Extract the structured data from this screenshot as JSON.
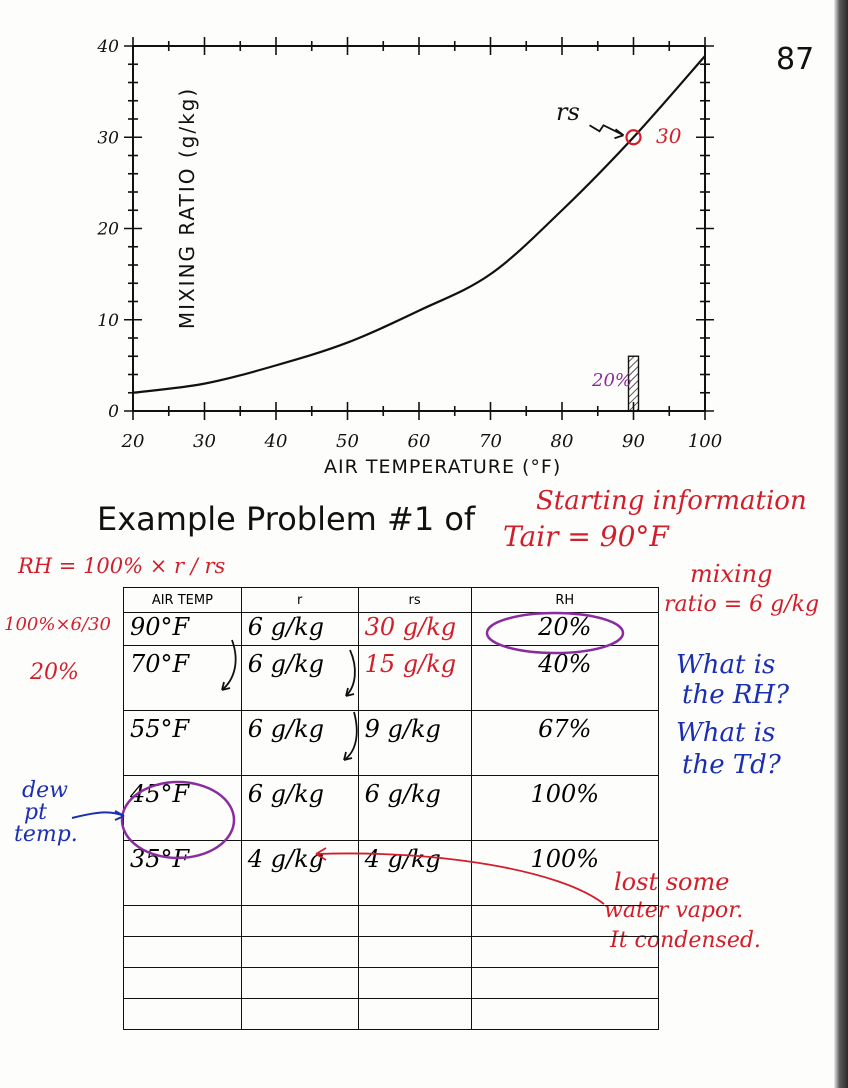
{
  "page_number": "87",
  "chart_data": {
    "type": "line",
    "xlabel": "AIR TEMPERATURE (°F)",
    "ylabel": "MIXING RATIO (g/kg)",
    "xlim": [
      20,
      100
    ],
    "ylim": [
      0,
      40
    ],
    "x_ticks": [
      "20",
      "30",
      "40",
      "50",
      "60",
      "70",
      "80",
      "90",
      "100"
    ],
    "y_ticks": [
      "0",
      "10",
      "20",
      "30",
      "40"
    ],
    "series": [
      {
        "x": [
          20,
          30,
          40,
          50,
          60,
          70,
          80,
          90,
          100
        ],
        "y": [
          2,
          3,
          5,
          7.5,
          11,
          15,
          22,
          30,
          43
        ]
      }
    ],
    "annotations": [
      {
        "label": "rs",
        "value_label": "30",
        "x": 90,
        "y": 30,
        "color": "#d21e2b"
      },
      {
        "label": "20%",
        "x": 90,
        "bar_top_y": 6,
        "color": "#8a2ba0"
      }
    ]
  },
  "heading": {
    "title": "Example Problem #1 of",
    "formula": "RH = 100% × r / rs",
    "starting_info": "Starting information",
    "tair": "Tair = 90°F",
    "mixing_ratio": [
      "mixing",
      "ratio = 6 g/kg"
    ]
  },
  "side_calc": {
    "line1": "100%×6/30",
    "line2": "20%"
  },
  "questions": [
    "What is",
    "the RH?",
    "What is",
    "the Td?"
  ],
  "dew_point_label": [
    "dew",
    "pt",
    "temp."
  ],
  "condensation_note": [
    "lost some",
    "water vapor.",
    "It condensed."
  ],
  "table": {
    "headers": [
      "AIR TEMP",
      "r",
      "rs",
      "RH"
    ],
    "rows": [
      {
        "temp": "90°F",
        "r": "6 g/kg",
        "rs": "30 g/kg",
        "rh": "20%"
      },
      {
        "temp": "70°F",
        "r": "6 g/kg",
        "rs": "15 g/kg",
        "rh": "40%"
      },
      {
        "temp": "55°F",
        "r": "6 g/kg",
        "rs": "9 g/kg",
        "rh": "67%"
      },
      {
        "temp": "45°F",
        "r": "6 g/kg",
        "rs": "6 g/kg",
        "rh": "100%"
      },
      {
        "temp": "35°F",
        "r": "4 g/kg",
        "rs": "4 g/kg",
        "rh": "100%"
      }
    ]
  },
  "colors": {
    "ink": "#111111",
    "red": "#d21e2b",
    "blue": "#1b2fb0",
    "purple": "#8a2ba0"
  }
}
